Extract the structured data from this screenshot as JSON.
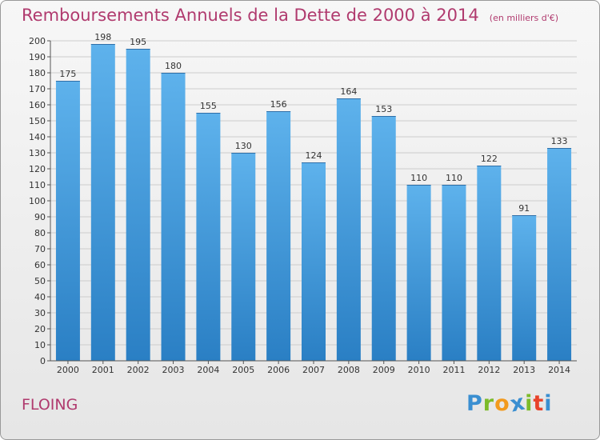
{
  "header": {
    "title": "Remboursements Annuels de la Dette de 2000 à 2014",
    "subtitle": "(en milliers d'€)"
  },
  "footer": {
    "commune": "FLOING",
    "logo_letters": [
      {
        "char": "P",
        "color": "#3a8fd1"
      },
      {
        "char": "r",
        "color": "#7cbb2a"
      },
      {
        "char": "o",
        "color": "#f29a1d"
      },
      {
        "char": "x",
        "color": "#3a8fd1"
      },
      {
        "char": "i",
        "color": "#7cbb2a"
      },
      {
        "char": "t",
        "color": "#e8432a"
      },
      {
        "char": "i",
        "color": "#3a8fd1"
      }
    ]
  },
  "colors": {
    "title": "#b03a6e",
    "bar_top": "#5eb2ec",
    "bar_bottom": "#2a7fc4",
    "grid": "#cccccc",
    "axis_text": "#333333"
  },
  "chart_data": {
    "type": "bar",
    "categories": [
      "2000",
      "2001",
      "2002",
      "2003",
      "2004",
      "2005",
      "2006",
      "2007",
      "2008",
      "2009",
      "2010",
      "2011",
      "2012",
      "2013",
      "2014"
    ],
    "values": [
      175,
      198,
      195,
      180,
      155,
      130,
      156,
      124,
      164,
      153,
      110,
      110,
      122,
      91,
      133
    ],
    "ylim": [
      0,
      200
    ],
    "ytick_step": 10,
    "grid": true,
    "data_labels": true
  }
}
